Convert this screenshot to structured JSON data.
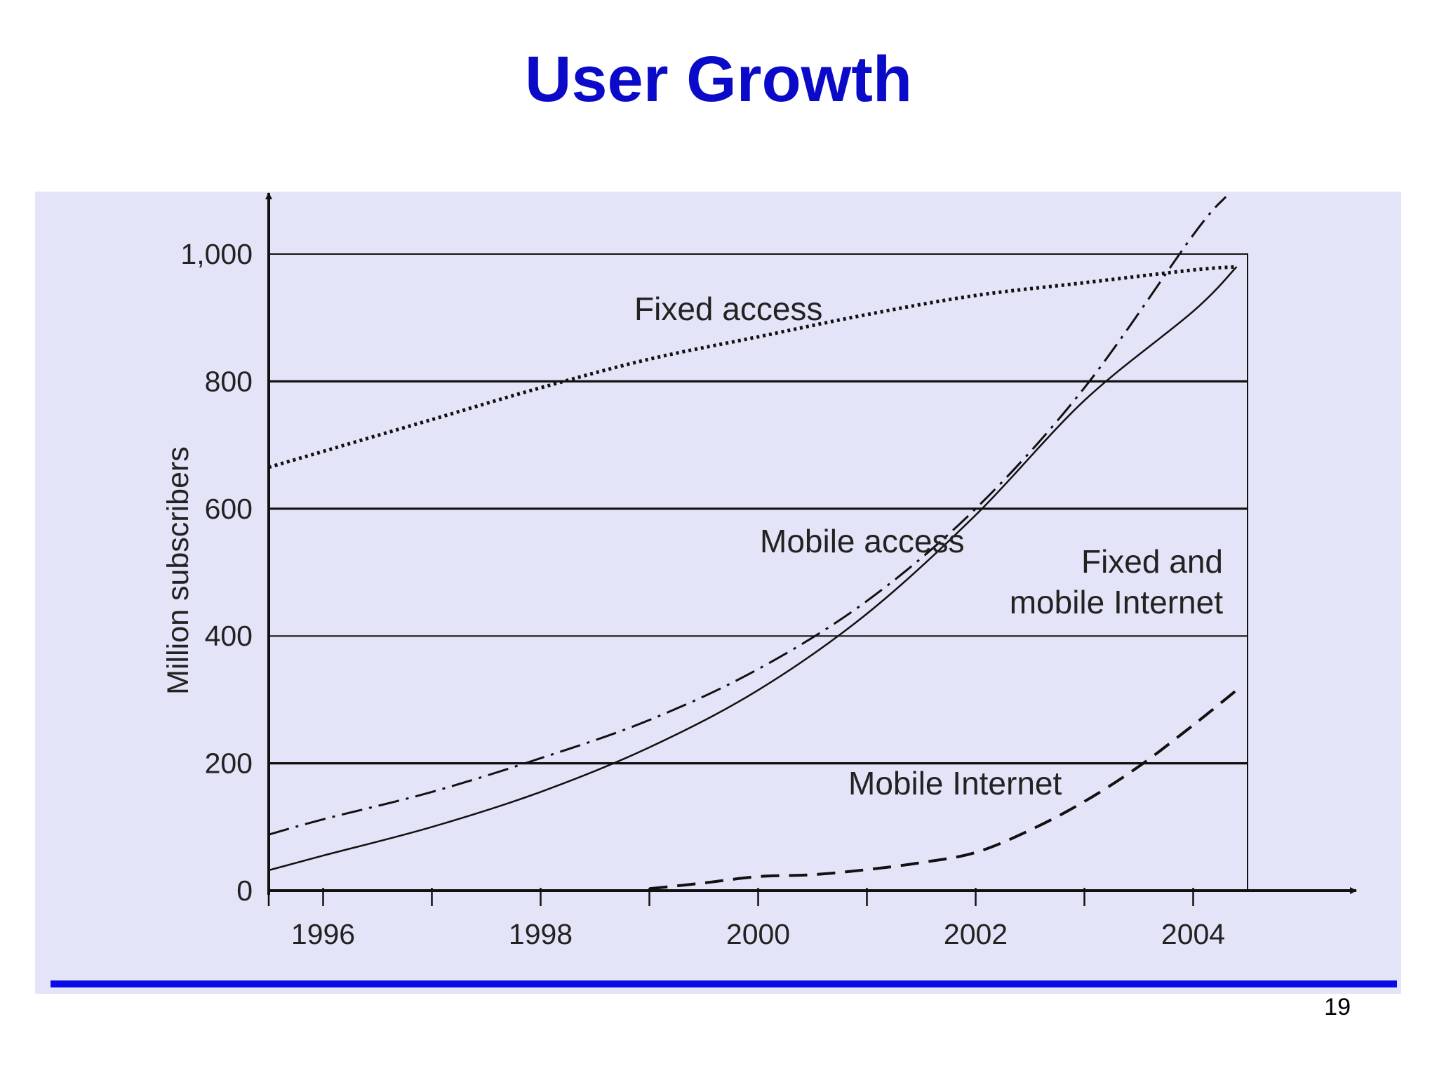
{
  "slide": {
    "title": "User Growth",
    "page_number": "19"
  },
  "colors": {
    "title": "#0a0ac8",
    "panel_background": "#e4e4f8",
    "footer_rule": "#0a0ae6",
    "lines": "#111111"
  },
  "chart_data": {
    "type": "line",
    "ylabel": "Million subscribers",
    "xlim": [
      1995.5,
      2004.5
    ],
    "ylim": [
      0,
      1000
    ],
    "x_ticks": [
      1996,
      1998,
      2000,
      2002,
      2004
    ],
    "x_tick_labels": [
      "1996",
      "1998",
      "2000",
      "2002",
      "2004"
    ],
    "y_ticks": [
      0,
      200,
      400,
      600,
      800,
      1000
    ],
    "y_tick_labels": [
      "0",
      "200",
      "400",
      "600",
      "800",
      "1,000"
    ],
    "grid": "horizontal",
    "series": [
      {
        "name": "Fixed access",
        "style": "dotted",
        "x": [
          1995.5,
          1996,
          1997,
          1998,
          1999,
          2000,
          2001,
          2002,
          2003,
          2004,
          2004.4
        ],
        "values": [
          665,
          690,
          740,
          790,
          835,
          870,
          905,
          935,
          955,
          975,
          980
        ]
      },
      {
        "name": "Mobile access",
        "style": "dash-dot",
        "x": [
          1995.5,
          1996,
          1997,
          1998,
          1999,
          2000,
          2001,
          2002,
          2003,
          2004,
          2004.3
        ],
        "values": [
          88,
          112,
          155,
          208,
          268,
          348,
          455,
          600,
          790,
          1030,
          1090
        ]
      },
      {
        "name": "Fixed and mobile Internet",
        "label_lines": [
          "Fixed and",
          "mobile Internet"
        ],
        "style": "solid",
        "x": [
          1995.5,
          1996,
          1997,
          1998,
          1999,
          2000,
          2001,
          2002,
          2003,
          2004,
          2004.4
        ],
        "values": [
          32,
          55,
          100,
          155,
          225,
          315,
          435,
          590,
          770,
          910,
          980
        ]
      },
      {
        "name": "Mobile Internet",
        "style": "dashed",
        "x": [
          1999,
          1999.5,
          2000,
          2000.5,
          2001,
          2001.5,
          2002,
          2002.5,
          2003,
          2003.5,
          2004,
          2004.4
        ],
        "values": [
          3,
          12,
          22,
          25,
          33,
          44,
          60,
          95,
          140,
          195,
          260,
          315
        ]
      }
    ]
  }
}
